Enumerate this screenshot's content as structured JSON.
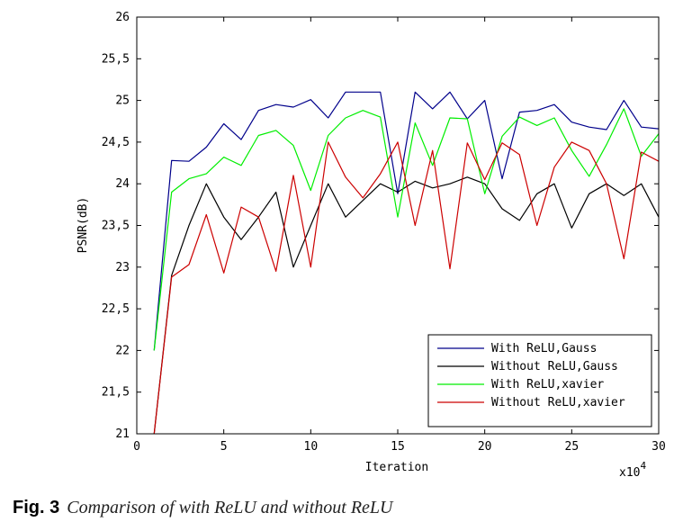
{
  "chart_data": {
    "type": "line",
    "xlabel": "Iteration",
    "ylabel": "PSNR(dB)",
    "x_multiplier_label": "x10",
    "x_multiplier_exponent": "4",
    "xlim": [
      0,
      30
    ],
    "ylim": [
      21,
      26
    ],
    "x_ticks": [
      0,
      5,
      10,
      15,
      20,
      25,
      30
    ],
    "x_tick_labels": [
      "0",
      "5",
      "10",
      "15",
      "20",
      "25",
      "30"
    ],
    "y_ticks": [
      21,
      21.5,
      22,
      22.5,
      23,
      23.5,
      24,
      24.5,
      25,
      25.5,
      26
    ],
    "y_tick_labels": [
      "21",
      "21,5",
      "22",
      "22,5",
      "23",
      "23,5",
      "24",
      "24,5",
      "25",
      "25,5",
      "26"
    ],
    "grid": false,
    "legend_position": "bottom-right",
    "x": [
      1,
      2,
      3,
      4,
      5,
      6,
      7,
      8,
      9,
      10,
      11,
      12,
      13,
      14,
      15,
      16,
      17,
      18,
      19,
      20,
      21,
      22,
      23,
      24,
      25,
      26,
      27,
      28,
      29,
      30
    ],
    "series": [
      {
        "name": "With ReLU,Gauss",
        "color": "#00008b",
        "values": [
          22.0,
          24.28,
          24.27,
          24.44,
          24.72,
          24.53,
          24.88,
          24.95,
          24.92,
          25.01,
          24.79,
          25.1,
          25.1,
          25.1,
          23.88,
          25.1,
          24.9,
          25.1,
          24.78,
          25.0,
          24.06,
          24.86,
          24.88,
          24.95,
          24.74,
          24.68,
          24.65,
          25.0,
          24.68,
          24.66
        ]
      },
      {
        "name": "Without ReLU,Gauss",
        "color": "#000000",
        "values": [
          21.0,
          22.9,
          23.5,
          24.0,
          23.6,
          23.33,
          23.6,
          23.9,
          23.0,
          23.5,
          24.0,
          23.6,
          23.8,
          24.0,
          23.9,
          24.03,
          23.95,
          24.0,
          24.08,
          24.0,
          23.7,
          23.56,
          23.88,
          24.0,
          23.47,
          23.88,
          24.0,
          23.86,
          24.0,
          23.6
        ]
      },
      {
        "name": "With ReLU,xavier",
        "color": "#00ee00",
        "values": [
          22.0,
          23.9,
          24.06,
          24.12,
          24.32,
          24.22,
          24.58,
          24.64,
          24.46,
          23.92,
          24.58,
          24.79,
          24.88,
          24.8,
          23.6,
          24.73,
          24.22,
          24.79,
          24.78,
          23.88,
          24.57,
          24.8,
          24.7,
          24.79,
          24.4,
          24.09,
          24.47,
          24.9,
          24.33,
          24.6
        ]
      },
      {
        "name": "Without ReLU,xavier",
        "color": "#cc0000",
        "values": [
          21.0,
          22.88,
          23.03,
          23.63,
          22.93,
          23.72,
          23.6,
          22.95,
          24.1,
          23.0,
          24.5,
          24.08,
          23.83,
          24.12,
          24.5,
          23.5,
          24.4,
          22.98,
          24.49,
          24.05,
          24.49,
          24.35,
          23.5,
          24.2,
          24.5,
          24.4,
          24.0,
          23.1,
          24.38,
          24.27
        ]
      }
    ]
  },
  "caption": {
    "label": "Fig. 3",
    "text": "Comparison of with ReLU and without ReLU"
  }
}
